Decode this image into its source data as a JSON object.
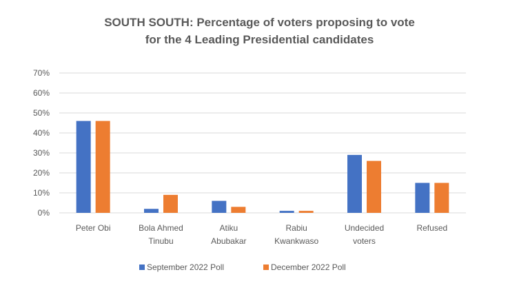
{
  "chart_data": {
    "type": "bar",
    "title_lines": [
      "SOUTH SOUTH: Percentage of voters proposing to vote",
      "for the 4 Leading Presidential candidates"
    ],
    "categories": [
      [
        "Peter Obi"
      ],
      [
        "Bola Ahmed",
        "Tinubu"
      ],
      [
        "Atiku",
        "Abubakar"
      ],
      [
        "Rabiu",
        "Kwankwaso"
      ],
      [
        "Undecided",
        "voters"
      ],
      [
        "Refused"
      ]
    ],
    "series": [
      {
        "name": "September 2022 Poll",
        "color": "#4472C4",
        "values": [
          46,
          2,
          6,
          1,
          29,
          15
        ]
      },
      {
        "name": "December 2022 Poll",
        "color": "#ED7D31",
        "values": [
          46,
          9,
          3,
          1,
          26,
          15
        ]
      }
    ],
    "ylim": [
      0,
      70
    ],
    "yticks": [
      "0%",
      "10%",
      "20%",
      "30%",
      "40%",
      "50%",
      "60%",
      "70%"
    ],
    "legend_position": "bottom",
    "grid": true,
    "gridline_color": "#D9D9D9"
  }
}
